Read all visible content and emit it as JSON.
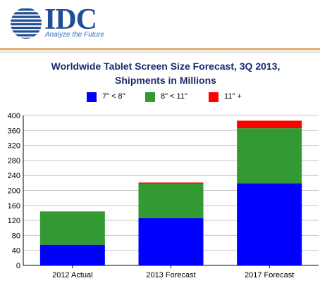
{
  "brand": {
    "name": "IDC",
    "tagline": "Analyze the Future",
    "logo_color": "#1f4e96"
  },
  "chart_data": {
    "type": "bar",
    "stacked": true,
    "title_line1": "Worldwide Tablet Screen Size Forecast, 3Q 2013,",
    "title_line2": "Shipments in Millions",
    "categories": [
      "2012 Actual",
      "2013 Forecast",
      "2017 Forecast"
    ],
    "series": [
      {
        "name": "7\" < 8\"",
        "color": "#0000ff",
        "values": [
          55,
          126,
          219
        ]
      },
      {
        "name": "8\" < 11\"",
        "color": "#339933",
        "values": [
          89,
          92,
          147
        ]
      },
      {
        "name": "11\" +",
        "color": "#ff0000",
        "values": [
          0,
          3,
          20
        ]
      }
    ],
    "ylim": [
      0,
      400
    ],
    "yticks": [
      0,
      40,
      80,
      120,
      160,
      200,
      240,
      280,
      320,
      360,
      400
    ],
    "grid": true,
    "legend_position": "top"
  }
}
